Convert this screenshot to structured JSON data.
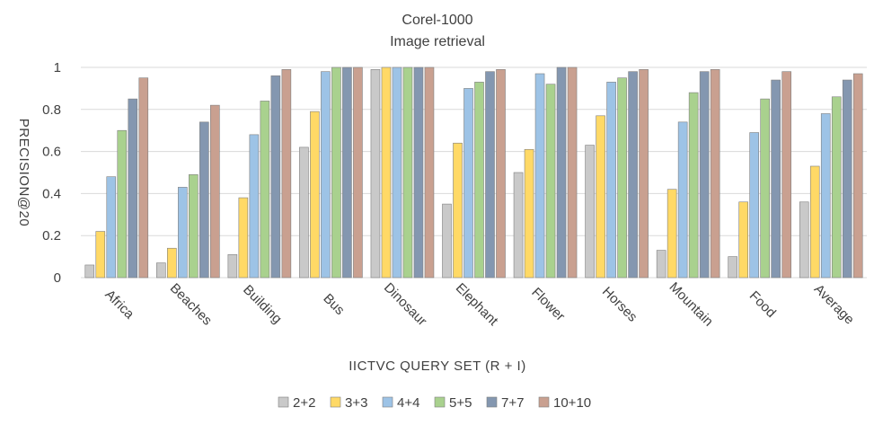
{
  "chart_data": {
    "type": "bar",
    "title": "Corel-1000",
    "subtitle": "Image retrieval",
    "xlabel": "IICTVC QUERY SET (R + I)",
    "ylabel": "PRECISION@20",
    "ylim": [
      0,
      1
    ],
    "yticks": [
      "0",
      "0.2",
      "0.4",
      "0.6",
      "0.8",
      "1"
    ],
    "ytick_values": [
      0,
      0.2,
      0.4,
      0.6,
      0.8,
      1
    ],
    "grid": true,
    "legend_position": "bottom",
    "categories": [
      "Africa",
      "Beaches",
      "Building",
      "Bus",
      "Dinosaur",
      "Elephant",
      "Flower",
      "Horses",
      "Mountain",
      "Food",
      "Average"
    ],
    "series": [
      {
        "name": "2+2",
        "color": "#c9c9c9",
        "values": [
          0.06,
          0.07,
          0.11,
          0.62,
          0.99,
          0.35,
          0.5,
          0.63,
          0.13,
          0.1,
          0.36
        ]
      },
      {
        "name": "3+3",
        "color": "#ffd966",
        "values": [
          0.22,
          0.14,
          0.38,
          0.79,
          1.0,
          0.64,
          0.61,
          0.77,
          0.42,
          0.36,
          0.53
        ]
      },
      {
        "name": "4+4",
        "color": "#9dc3e6",
        "values": [
          0.48,
          0.43,
          0.68,
          0.98,
          1.0,
          0.9,
          0.97,
          0.93,
          0.74,
          0.69,
          0.78
        ]
      },
      {
        "name": "5+5",
        "color": "#a9d18e",
        "values": [
          0.7,
          0.49,
          0.84,
          1.0,
          1.0,
          0.93,
          0.92,
          0.95,
          0.88,
          0.85,
          0.86
        ]
      },
      {
        "name": "7+7",
        "color": "#8497b0",
        "values": [
          0.85,
          0.74,
          0.96,
          1.0,
          1.0,
          0.98,
          1.0,
          0.98,
          0.98,
          0.94,
          0.94
        ]
      },
      {
        "name": "10+10",
        "color": "#c9a090",
        "values": [
          0.95,
          0.82,
          0.99,
          1.0,
          1.0,
          0.99,
          1.0,
          0.99,
          0.99,
          0.98,
          0.97
        ]
      }
    ]
  }
}
